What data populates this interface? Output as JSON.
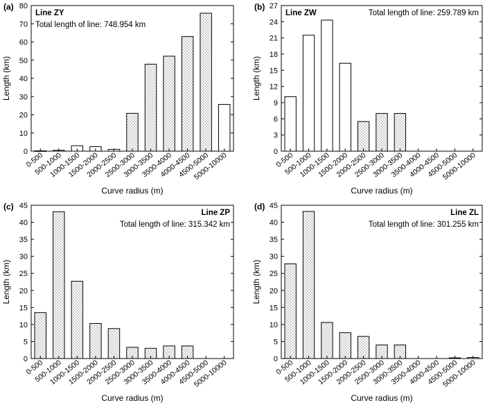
{
  "chart_data": [
    {
      "type": "bar",
      "panel_label": "(a)",
      "line_name": "Line ZY",
      "total_text": "Total length of line: 748.954 km",
      "ylabel": "Length (km)",
      "xlabel": "Curve radius (m)",
      "ylim": [
        0,
        80
      ],
      "yticks": [
        0,
        10,
        20,
        30,
        40,
        50,
        60,
        70,
        80
      ],
      "categories": [
        "0-500",
        "500-1000",
        "1000-1500",
        "1500-2000",
        "2000-2500",
        "2500-3000",
        "3000-3500",
        "3500-4000",
        "4000-4500",
        "4500-5000",
        "5000-10000"
      ],
      "values": [
        0.2,
        0.5,
        3.0,
        2.5,
        1.0,
        20.8,
        47.8,
        52.2,
        63.0,
        75.8,
        25.7
      ],
      "hatched": [
        false,
        false,
        false,
        false,
        false,
        true,
        true,
        true,
        true,
        true,
        false
      ],
      "total_position": "top-left"
    },
    {
      "type": "bar",
      "panel_label": "(b)",
      "line_name": "Line ZW",
      "total_text": "Total length of line: 259.789 km",
      "ylabel": "Length (km)",
      "xlabel": "Curve radius (m)",
      "ylim": [
        0,
        27
      ],
      "yticks": [
        0,
        3,
        6,
        9,
        12,
        15,
        18,
        21,
        24,
        27
      ],
      "categories": [
        "0-500",
        "500-1000",
        "1000-1500",
        "1500-2000",
        "2000-2500",
        "2500-3000",
        "3000-3500",
        "3500-4000",
        "4000-4500",
        "4500-5000",
        "5000-10000"
      ],
      "values": [
        10.1,
        21.5,
        24.3,
        16.3,
        5.5,
        7.0,
        7.0,
        0,
        0,
        0,
        0
      ],
      "hatched": [
        false,
        false,
        false,
        false,
        true,
        true,
        true,
        false,
        false,
        false,
        false
      ],
      "total_position": "top-right"
    },
    {
      "type": "bar",
      "panel_label": "(c)",
      "line_name": "Line ZP",
      "total_text": "Total length of line: 315.342 km",
      "ylabel": "Length (km)",
      "xlabel": "Curve radius (m)",
      "ylim": [
        0,
        45
      ],
      "yticks": [
        0,
        5,
        10,
        15,
        20,
        25,
        30,
        35,
        40,
        45
      ],
      "categories": [
        "0-500",
        "500-1000",
        "1000-1500",
        "1500-2000",
        "2000-2500",
        "2500-3000",
        "3000-3500",
        "3500-4000",
        "4000-4500",
        "4500-5000",
        "5000-10000"
      ],
      "values": [
        13.5,
        43.1,
        22.7,
        10.3,
        8.8,
        3.3,
        3.0,
        3.7,
        3.7,
        0,
        0
      ],
      "hatched": [
        true,
        true,
        true,
        true,
        true,
        true,
        true,
        true,
        true,
        false,
        false
      ],
      "total_position": "top-right"
    },
    {
      "type": "bar",
      "panel_label": "(d)",
      "line_name": "Line ZL",
      "total_text": "Total length of line: 301.255 km",
      "ylabel": "Length (km)",
      "xlabel": "Curve radius (m)",
      "ylim": [
        0,
        45
      ],
      "yticks": [
        0,
        5,
        10,
        15,
        20,
        25,
        30,
        35,
        40,
        45
      ],
      "categories": [
        "0-500",
        "500-1000",
        "1000-1500",
        "1500-2000",
        "2000-2500",
        "2500-3000",
        "3000-3500",
        "3500-4000",
        "4000-4500",
        "4500-5000",
        "5000-10000"
      ],
      "values": [
        27.8,
        43.2,
        10.6,
        7.6,
        6.5,
        4.0,
        4.0,
        0,
        0,
        0.2,
        0.3
      ],
      "hatched": [
        true,
        true,
        true,
        true,
        true,
        true,
        true,
        false,
        false,
        false,
        false
      ],
      "total_position": "top-right"
    }
  ]
}
